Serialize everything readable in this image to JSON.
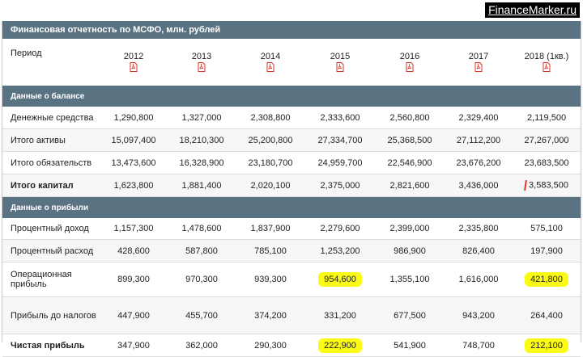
{
  "watermark": "FinanceMarker.ru",
  "title": "Финансовая отчетность по МСФО, млн. рублей",
  "period_label": "Период",
  "years": [
    "2012",
    "2013",
    "2014",
    "2015",
    "2016",
    "2017",
    "2018 (1кв.)"
  ],
  "icon": "pdf-icon",
  "balance_section": "Данные о балансе",
  "balance_rows": [
    {
      "label": "Денежные средства",
      "values": [
        "1,290,800",
        "1,327,000",
        "2,308,800",
        "2,333,600",
        "2,560,800",
        "2,329,400",
        "2,119,500"
      ]
    },
    {
      "label": "Итого активы",
      "values": [
        "15,097,400",
        "18,210,300",
        "25,200,800",
        "27,334,700",
        "25,368,500",
        "27,112,200",
        "27,267,000"
      ]
    },
    {
      "label": "Итого обязательств",
      "values": [
        "13,473,600",
        "16,328,900",
        "23,180,700",
        "24,959,700",
        "22,546,900",
        "23,676,200",
        "23,683,500"
      ]
    },
    {
      "label": "Итого капитал",
      "values": [
        "1,623,800",
        "1,881,400",
        "2,020,100",
        "2,375,000",
        "2,821,600",
        "3,436,000",
        "3,583,500"
      ]
    }
  ],
  "income_section": "Данные о прибыли",
  "income_rows": [
    {
      "label": "Процентный доход",
      "values": [
        "1,157,300",
        "1,478,600",
        "1,837,900",
        "2,279,600",
        "2,399,000",
        "2,335,800",
        "575,100"
      ]
    },
    {
      "label": "Процентный расход",
      "values": [
        "428,600",
        "587,800",
        "785,100",
        "1,253,200",
        "986,900",
        "826,400",
        "197,900"
      ]
    },
    {
      "label": "Операционная прибыль",
      "values": [
        "899,300",
        "970,300",
        "939,300",
        "954,600",
        "1,355,100",
        "1,616,000",
        "421,800"
      ]
    },
    {
      "label": "Прибыль до налогов",
      "values": [
        "447,900",
        "455,700",
        "374,200",
        "331,200",
        "677,500",
        "943,200",
        "264,400"
      ]
    },
    {
      "label": "Чистая прибыль",
      "values": [
        "347,900",
        "362,000",
        "290,300",
        "222,900",
        "541,900",
        "748,700",
        "212,100"
      ]
    }
  ],
  "colors": {
    "header_bg": "#5a7383",
    "highlight": "#fafa14",
    "pdf_red": "#d9322a"
  }
}
